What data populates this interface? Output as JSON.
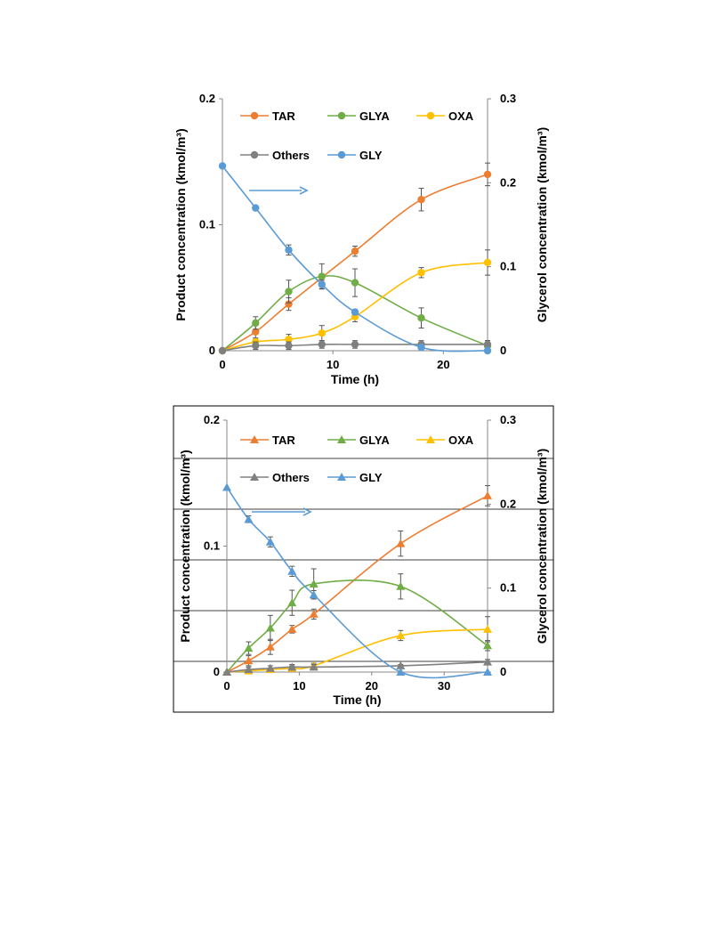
{
  "chart_data": [
    {
      "type": "line",
      "marker": "circle",
      "xlabel": "Time (h)",
      "ylabel": "Product concentration (kmol/m³)",
      "y2label": "Glycerol concentration (kmol/m³)",
      "xlim": [
        0,
        24
      ],
      "xticks": [
        "0",
        "10",
        "20"
      ],
      "xtick_values": [
        0,
        10,
        20
      ],
      "ylim": [
        0,
        0.2
      ],
      "yticks": [
        "0",
        "0.1",
        "0.2"
      ],
      "ytick_values": [
        0,
        0.1,
        0.2
      ],
      "y2lim": [
        0,
        0.3
      ],
      "y2ticks": [
        "0",
        "0.1",
        "0.2",
        "0.3"
      ],
      "y2tick_values": [
        0,
        0.1,
        0.2,
        0.3
      ],
      "legend_rows": [
        [
          "TAR",
          "GLYA",
          "OXA"
        ],
        [
          "Others",
          "GLY"
        ]
      ],
      "arrow": {
        "direction": "right",
        "color": "#5b9bd5"
      },
      "series": [
        {
          "name": "TAR",
          "axis": "left",
          "color": "#ed7d31",
          "x": [
            0,
            3,
            6,
            12,
            18,
            24
          ],
          "y": [
            0,
            0.015,
            0.037,
            0.079,
            0.12,
            0.14
          ],
          "err": [
            0,
            0.005,
            0.005,
            0.004,
            0.009,
            0.009
          ]
        },
        {
          "name": "GLYA",
          "axis": "left",
          "color": "#70ad47",
          "x": [
            0,
            3,
            6,
            9,
            12,
            18,
            24
          ],
          "y": [
            0,
            0.022,
            0.047,
            0.059,
            0.054,
            0.026,
            0.004
          ],
          "err": [
            0,
            0.005,
            0.009,
            0.01,
            0.011,
            0.008,
            0.004
          ]
        },
        {
          "name": "OXA",
          "axis": "left",
          "color": "#ffc000",
          "x": [
            0,
            3,
            6,
            9,
            12,
            18,
            24
          ],
          "y": [
            0,
            0.007,
            0.009,
            0.014,
            0.027,
            0.062,
            0.07
          ],
          "err": [
            0,
            0.003,
            0.004,
            0.006,
            0.004,
            0.004,
            0.01
          ]
        },
        {
          "name": "Others",
          "axis": "left",
          "color": "#808080",
          "x": [
            0,
            3,
            6,
            9,
            12,
            18,
            24
          ],
          "y": [
            0,
            0.004,
            0.004,
            0.005,
            0.005,
            0.005,
            0.005
          ],
          "err": [
            0,
            0.003,
            0.003,
            0.003,
            0.003,
            0.003,
            0.003
          ]
        },
        {
          "name": "GLY",
          "axis": "right",
          "color": "#5b9bd5",
          "x": [
            0,
            3,
            6,
            9,
            12,
            18,
            24
          ],
          "y": [
            0.22,
            0.17,
            0.12,
            0.079,
            0.046,
            0.004,
            0
          ],
          "err": [
            0,
            0,
            0.006,
            0.005,
            0.003,
            0.002,
            0
          ]
        }
      ]
    },
    {
      "type": "line",
      "marker": "triangle",
      "xlabel": "Time (h)",
      "ylabel": "Product concentration (kmol/m³)",
      "y2label": "Glycerol concentration (kmol/m³)",
      "xlim": [
        0,
        36
      ],
      "xticks": [
        "0",
        "10",
        "20",
        "30"
      ],
      "xtick_values": [
        0,
        10,
        20,
        30
      ],
      "ylim": [
        0,
        0.2
      ],
      "yticks": [
        "0",
        "0.1",
        "0.2"
      ],
      "ytick_values": [
        0,
        0.1,
        0.2
      ],
      "y2lim": [
        0,
        0.3
      ],
      "y2ticks": [
        "0",
        "0.1",
        "0.2",
        "0.3"
      ],
      "y2tick_values": [
        0,
        0.1,
        0.2,
        0.3
      ],
      "legend_rows": [
        [
          "TAR",
          "GLYA",
          "OXA"
        ],
        [
          "Others",
          "GLY"
        ]
      ],
      "arrow": {
        "direction": "right",
        "color": "#5b9bd5"
      },
      "series": [
        {
          "name": "TAR",
          "axis": "left",
          "color": "#ed7d31",
          "x": [
            0,
            3,
            6,
            9,
            12,
            24,
            36
          ],
          "y": [
            0,
            0.009,
            0.02,
            0.034,
            0.046,
            0.102,
            0.14
          ],
          "err": [
            0,
            0.004,
            0.006,
            0.003,
            0.004,
            0.01,
            0.008
          ]
        },
        {
          "name": "GLYA",
          "axis": "left",
          "color": "#70ad47",
          "x": [
            0,
            3,
            6,
            9,
            12,
            24,
            36
          ],
          "y": [
            0,
            0.019,
            0.035,
            0.055,
            0.07,
            0.068,
            0.021
          ],
          "err": [
            0,
            0.005,
            0.01,
            0.01,
            0.012,
            0.01,
            0.004
          ]
        },
        {
          "name": "OXA",
          "axis": "left",
          "color": "#ffc000",
          "x": [
            0,
            3,
            6,
            9,
            12,
            24,
            36
          ],
          "y": [
            0,
            0.001,
            0.002,
            0.003,
            0.005,
            0.029,
            0.034
          ],
          "err": [
            0,
            0.001,
            0.001,
            0.002,
            0.002,
            0.004,
            0.01
          ]
        },
        {
          "name": "Others",
          "axis": "left",
          "color": "#808080",
          "x": [
            0,
            3,
            6,
            9,
            12,
            24,
            36
          ],
          "y": [
            0,
            0.002,
            0.003,
            0.004,
            0.004,
            0.005,
            0.008
          ],
          "err": [
            0,
            0.002,
            0.002,
            0.002,
            0.002,
            0.001,
            0.002
          ]
        },
        {
          "name": "GLY",
          "axis": "right",
          "color": "#5b9bd5",
          "x": [
            0,
            3,
            6,
            9,
            12,
            24,
            36
          ],
          "y": [
            0.22,
            0.182,
            0.155,
            0.12,
            0.092,
            0,
            0
          ],
          "err": [
            0,
            0.004,
            0.006,
            0.006,
            0.005,
            0,
            0
          ]
        }
      ]
    }
  ]
}
